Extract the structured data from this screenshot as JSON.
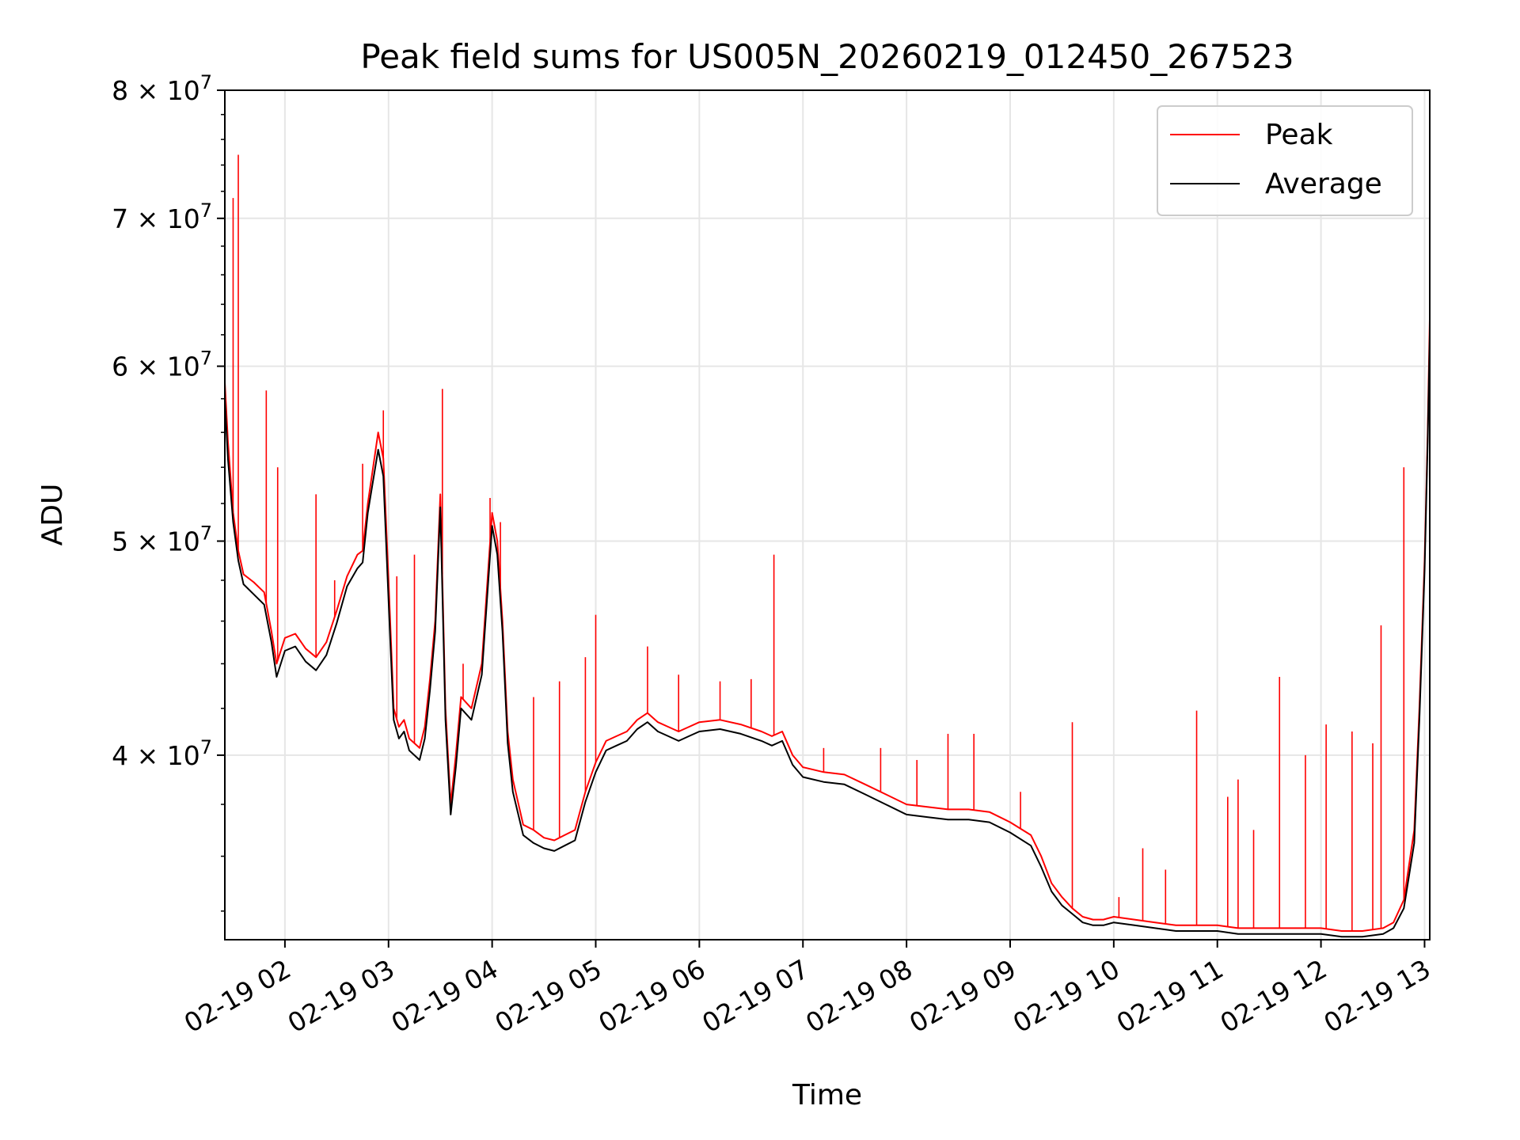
{
  "chart_data": {
    "type": "line",
    "title": "Peak field sums for US005N_20260219_012450_267523",
    "xlabel": "Time",
    "ylabel": "ADU",
    "yscale": "log",
    "ylim": [
      33000000,
      80000000
    ],
    "xlim": [
      1.42,
      13.05
    ],
    "grid": true,
    "legend_position": "top-right",
    "x_unit": "hours after 2026-02-19 00:00",
    "x_ticks": [
      {
        "value": 2,
        "label": "02-19 02"
      },
      {
        "value": 3,
        "label": "02-19 03"
      },
      {
        "value": 4,
        "label": "02-19 04"
      },
      {
        "value": 5,
        "label": "02-19 05"
      },
      {
        "value": 6,
        "label": "02-19 06"
      },
      {
        "value": 7,
        "label": "02-19 07"
      },
      {
        "value": 8,
        "label": "02-19 08"
      },
      {
        "value": 9,
        "label": "02-19 09"
      },
      {
        "value": 10,
        "label": "02-19 10"
      },
      {
        "value": 11,
        "label": "02-19 11"
      },
      {
        "value": 12,
        "label": "02-19 12"
      },
      {
        "value": 13,
        "label": "02-19 13"
      }
    ],
    "y_ticks": [
      {
        "value": 40000000,
        "mant": "4",
        "exp": "7"
      },
      {
        "value": 50000000,
        "mant": "5",
        "exp": "7"
      },
      {
        "value": 60000000,
        "mant": "6",
        "exp": "7"
      },
      {
        "value": 70000000,
        "mant": "7",
        "exp": "7"
      },
      {
        "value": 80000000,
        "mant": "8",
        "exp": "7"
      }
    ],
    "series": [
      {
        "name": "Peak",
        "color": "#ff0000",
        "x": [
          1.42,
          1.45,
          1.5,
          1.55,
          1.6,
          1.7,
          1.8,
          1.87,
          1.92,
          2.0,
          2.1,
          2.2,
          2.3,
          2.4,
          2.5,
          2.6,
          2.7,
          2.75,
          2.8,
          2.9,
          2.95,
          3.0,
          3.05,
          3.1,
          3.15,
          3.2,
          3.3,
          3.35,
          3.4,
          3.45,
          3.5,
          3.55,
          3.6,
          3.65,
          3.7,
          3.8,
          3.9,
          4.0,
          4.05,
          4.1,
          4.15,
          4.2,
          4.3,
          4.4,
          4.5,
          4.6,
          4.7,
          4.8,
          4.9,
          5.0,
          5.1,
          5.2,
          5.3,
          5.4,
          5.5,
          5.6,
          5.7,
          5.8,
          5.9,
          6.0,
          6.2,
          6.4,
          6.6,
          6.7,
          6.8,
          6.85,
          6.9,
          7.0,
          7.2,
          7.4,
          7.6,
          7.8,
          8.0,
          8.2,
          8.4,
          8.6,
          8.8,
          9.0,
          9.2,
          9.3,
          9.4,
          9.5,
          9.6,
          9.7,
          9.8,
          9.9,
          10.0,
          10.2,
          10.4,
          10.6,
          10.8,
          11.0,
          11.2,
          11.4,
          11.6,
          11.8,
          12.0,
          12.2,
          12.4,
          12.6,
          12.7,
          12.8,
          12.9,
          12.95,
          13.0,
          13.03,
          13.05
        ],
        "y": [
          59000000,
          55500000,
          51500000,
          49500000,
          48300000,
          47900000,
          47400000,
          45500000,
          44000000,
          45200000,
          45400000,
          44700000,
          44300000,
          45000000,
          46500000,
          48200000,
          49300000,
          49500000,
          52000000,
          56000000,
          54500000,
          48000000,
          42000000,
          41200000,
          41500000,
          40700000,
          40300000,
          41200000,
          43300000,
          46000000,
          52500000,
          42000000,
          38000000,
          40000000,
          42500000,
          42000000,
          44000000,
          51500000,
          50000000,
          46000000,
          41000000,
          39000000,
          37200000,
          37000000,
          36700000,
          36600000,
          36800000,
          37000000,
          38500000,
          39700000,
          40600000,
          40800000,
          41000000,
          41500000,
          41800000,
          41400000,
          41200000,
          41000000,
          41200000,
          41400000,
          41500000,
          41300000,
          41000000,
          40800000,
          41000000,
          40500000,
          40000000,
          39500000,
          39300000,
          39200000,
          38800000,
          38400000,
          38000000,
          37900000,
          37800000,
          37800000,
          37700000,
          37300000,
          36800000,
          36000000,
          35000000,
          34500000,
          34100000,
          33800000,
          33700000,
          33700000,
          33800000,
          33700000,
          33600000,
          33500000,
          33500000,
          33500000,
          33400000,
          33400000,
          33400000,
          33400000,
          33400000,
          33300000,
          33300000,
          33400000,
          33600000,
          34400000,
          37000000,
          42000000,
          49000000,
          56000000,
          63000000
        ],
        "spikes": [
          {
            "x": 1.5,
            "y": 71500000
          },
          {
            "x": 1.55,
            "y": 74800000
          },
          {
            "x": 1.82,
            "y": 58500000
          },
          {
            "x": 1.93,
            "y": 54000000
          },
          {
            "x": 2.3,
            "y": 52500000
          },
          {
            "x": 2.48,
            "y": 48000000
          },
          {
            "x": 2.75,
            "y": 54200000
          },
          {
            "x": 2.95,
            "y": 57300000
          },
          {
            "x": 3.08,
            "y": 48200000
          },
          {
            "x": 3.25,
            "y": 49300000
          },
          {
            "x": 3.52,
            "y": 58600000
          },
          {
            "x": 3.72,
            "y": 44000000
          },
          {
            "x": 3.98,
            "y": 52300000
          },
          {
            "x": 4.08,
            "y": 51000000
          },
          {
            "x": 4.4,
            "y": 42500000
          },
          {
            "x": 4.65,
            "y": 43200000
          },
          {
            "x": 4.9,
            "y": 44300000
          },
          {
            "x": 5.0,
            "y": 46300000
          },
          {
            "x": 5.5,
            "y": 44800000
          },
          {
            "x": 5.8,
            "y": 43500000
          },
          {
            "x": 6.2,
            "y": 43200000
          },
          {
            "x": 6.5,
            "y": 43300000
          },
          {
            "x": 6.72,
            "y": 49300000
          },
          {
            "x": 7.2,
            "y": 40300000
          },
          {
            "x": 7.75,
            "y": 40300000
          },
          {
            "x": 8.1,
            "y": 39800000
          },
          {
            "x": 8.4,
            "y": 40900000
          },
          {
            "x": 8.65,
            "y": 40900000
          },
          {
            "x": 9.1,
            "y": 38500000
          },
          {
            "x": 9.6,
            "y": 41400000
          },
          {
            "x": 10.05,
            "y": 34500000
          },
          {
            "x": 10.28,
            "y": 36300000
          },
          {
            "x": 10.5,
            "y": 35500000
          },
          {
            "x": 10.8,
            "y": 41900000
          },
          {
            "x": 11.1,
            "y": 38300000
          },
          {
            "x": 11.2,
            "y": 39000000
          },
          {
            "x": 11.35,
            "y": 37000000
          },
          {
            "x": 11.6,
            "y": 43400000
          },
          {
            "x": 11.85,
            "y": 40000000
          },
          {
            "x": 12.05,
            "y": 41300000
          },
          {
            "x": 12.3,
            "y": 41000000
          },
          {
            "x": 12.5,
            "y": 40500000
          },
          {
            "x": 12.58,
            "y": 45800000
          },
          {
            "x": 12.8,
            "y": 54000000
          }
        ]
      },
      {
        "name": "Average",
        "color": "#000000",
        "x": [
          1.42,
          1.45,
          1.5,
          1.55,
          1.6,
          1.7,
          1.8,
          1.87,
          1.92,
          2.0,
          2.1,
          2.2,
          2.3,
          2.4,
          2.5,
          2.6,
          2.7,
          2.75,
          2.8,
          2.9,
          2.95,
          3.0,
          3.05,
          3.1,
          3.15,
          3.2,
          3.3,
          3.35,
          3.4,
          3.45,
          3.5,
          3.55,
          3.6,
          3.65,
          3.7,
          3.8,
          3.9,
          4.0,
          4.05,
          4.1,
          4.15,
          4.2,
          4.3,
          4.4,
          4.5,
          4.6,
          4.7,
          4.8,
          4.9,
          5.0,
          5.1,
          5.2,
          5.3,
          5.4,
          5.5,
          5.6,
          5.7,
          5.8,
          5.9,
          6.0,
          6.2,
          6.4,
          6.6,
          6.7,
          6.8,
          6.85,
          6.9,
          7.0,
          7.2,
          7.4,
          7.6,
          7.8,
          8.0,
          8.2,
          8.4,
          8.6,
          8.8,
          9.0,
          9.2,
          9.3,
          9.4,
          9.5,
          9.6,
          9.7,
          9.8,
          9.9,
          10.0,
          10.2,
          10.4,
          10.6,
          10.8,
          11.0,
          11.2,
          11.4,
          11.6,
          11.8,
          12.0,
          12.2,
          12.4,
          12.6,
          12.7,
          12.8,
          12.9,
          12.95,
          13.0,
          13.03,
          13.05
        ],
        "y": [
          58000000,
          54500000,
          51000000,
          49000000,
          47800000,
          47300000,
          46800000,
          45000000,
          43400000,
          44600000,
          44800000,
          44100000,
          43700000,
          44400000,
          45900000,
          47700000,
          48600000,
          48900000,
          51500000,
          55000000,
          53500000,
          47000000,
          41500000,
          40700000,
          41000000,
          40200000,
          39800000,
          40700000,
          42800000,
          45500000,
          51800000,
          41500000,
          37600000,
          39500000,
          42000000,
          41500000,
          43500000,
          50800000,
          49300000,
          45500000,
          40500000,
          38500000,
          36800000,
          36500000,
          36300000,
          36200000,
          36400000,
          36600000,
          38100000,
          39300000,
          40200000,
          40400000,
          40600000,
          41100000,
          41400000,
          41000000,
          40800000,
          40600000,
          40800000,
          41000000,
          41100000,
          40900000,
          40600000,
          40400000,
          40600000,
          40100000,
          39600000,
          39100000,
          38900000,
          38800000,
          38400000,
          38000000,
          37600000,
          37500000,
          37400000,
          37400000,
          37300000,
          36900000,
          36400000,
          35600000,
          34700000,
          34200000,
          33900000,
          33600000,
          33500000,
          33500000,
          33600000,
          33500000,
          33400000,
          33300000,
          33300000,
          33300000,
          33200000,
          33200000,
          33200000,
          33200000,
          33200000,
          33100000,
          33100000,
          33200000,
          33400000,
          34100000,
          36500000,
          41500000,
          48500000,
          55500000,
          62000000
        ]
      }
    ]
  }
}
